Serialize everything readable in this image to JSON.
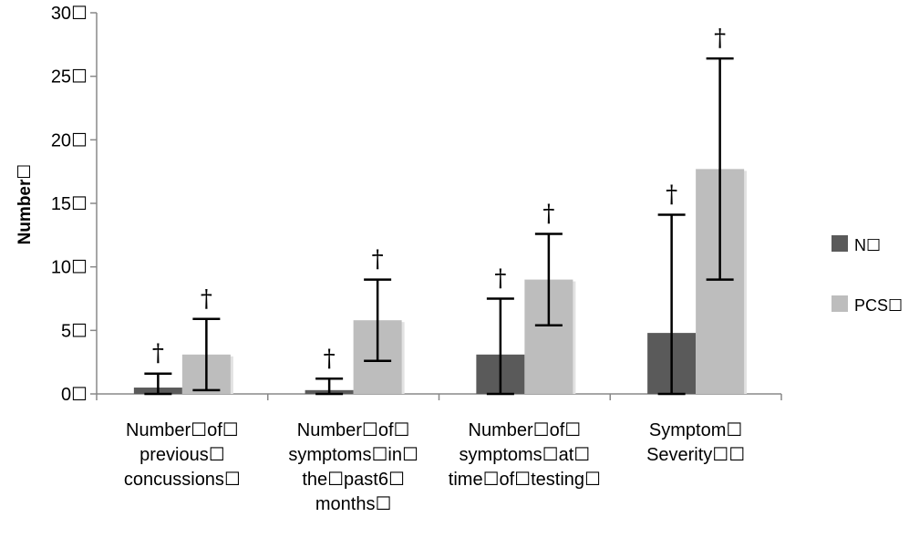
{
  "chart_data": {
    "type": "bar",
    "ylabel": "Number☐",
    "ylim": [
      0,
      30
    ],
    "yticks": [
      "0☐",
      "5☐",
      "10☐",
      "15☐",
      "20☐",
      "25☐",
      "30☐"
    ],
    "ytick_values": [
      0,
      5,
      10,
      15,
      20,
      25,
      30
    ],
    "grid": false,
    "legend_position": "right",
    "categories": [
      [
        "Number☐of☐",
        "previous☐",
        "concussions☐"
      ],
      [
        "Number☐of☐",
        "symptoms☐in☐",
        "the☐past␶6☐",
        "months☐"
      ],
      [
        "Number☐of☐",
        "symptoms☐at☐",
        "time☐of☐testing☐"
      ],
      [
        "Symptom☐",
        "Severity☐☐"
      ]
    ],
    "series": [
      {
        "name": "N☐",
        "color": "#5a5a5a",
        "values": [
          0.5,
          0.3,
          3.1,
          4.8
        ],
        "error": [
          1.1,
          0.9,
          4.4,
          9.3
        ],
        "markers": [
          "†",
          "†",
          "†",
          "†"
        ]
      },
      {
        "name": "PCS☐",
        "color": "#bdbdbd",
        "values": [
          3.1,
          5.8,
          9.0,
          17.7
        ],
        "error": [
          2.8,
          3.2,
          3.6,
          8.7
        ],
        "markers": [
          "†",
          "†",
          "†",
          "†"
        ]
      }
    ]
  }
}
